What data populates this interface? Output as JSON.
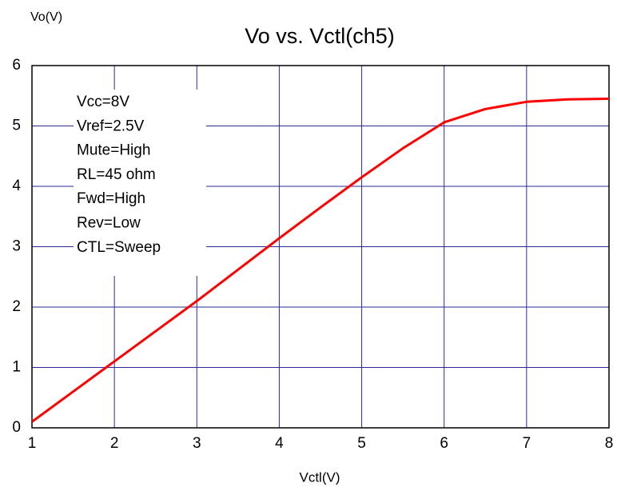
{
  "chart_data": {
    "type": "line",
    "title": "Vo vs. Vctl(ch5)",
    "x_label": "Vctl(V)",
    "y_label": "Vo(V)",
    "annotations": [
      "Vcc=8V",
      "Vref=2.5V",
      "Mute=High",
      "RL=45 ohm",
      "Fwd=High",
      "Rev=Low",
      "CTL=Sweep"
    ],
    "x": [
      1,
      1.5,
      2,
      2.5,
      3,
      3.5,
      4,
      4.5,
      5,
      5.5,
      6,
      6.5,
      7,
      7.5,
      8
    ],
    "series": [
      {
        "name": "Vo",
        "color": "#ff0000",
        "values": [
          0.1,
          0.6,
          1.1,
          1.6,
          2.1,
          2.62,
          3.14,
          3.65,
          4.15,
          4.63,
          5.06,
          5.28,
          5.4,
          5.44,
          5.45
        ]
      }
    ],
    "xlim": [
      1,
      8
    ],
    "xticks": [
      1,
      2,
      3,
      4,
      5,
      6,
      7,
      8
    ],
    "ylim": [
      0,
      6
    ],
    "yticks": [
      0,
      1,
      2,
      3,
      4,
      5,
      6
    ],
    "grid": true
  }
}
